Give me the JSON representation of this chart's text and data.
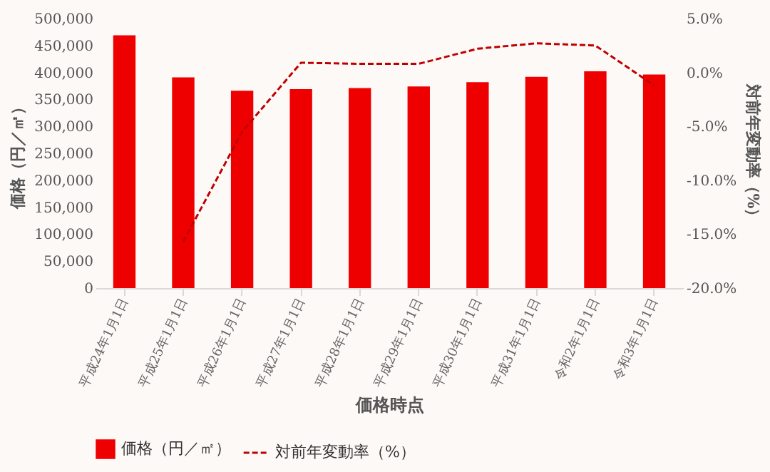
{
  "chart_data": {
    "type": "bar",
    "xlabel": "価格時点",
    "ylabel": "価格（円／㎡）",
    "y2label": "対前年変動率（%）",
    "categories": [
      "平成24年1月1日",
      "平成25年1月1日",
      "平成26年1月1日",
      "平成27年1月1日",
      "平成28年1月1日",
      "平成29年1月1日",
      "平成30年1月1日",
      "平成31年1月1日",
      "令和2年1月1日",
      "令和3年1月1日"
    ],
    "series": [
      {
        "name": "価格（円／㎡）",
        "color": "#ee0000",
        "values": [
          469000,
          391000,
          366000,
          369000,
          371000,
          374000,
          382000,
          392000,
          402000,
          396000
        ]
      },
      {
        "name": "対前年変動率（%）",
        "type": "line",
        "axis": "y2",
        "color": "#c00000",
        "line_style": "dashed",
        "marker": "none",
        "values": [
          null,
          -15.7,
          -5.5,
          0.9,
          0.8,
          0.8,
          2.2,
          2.7,
          2.5,
          -1.2
        ]
      }
    ],
    "ylim": [
      0,
      500000
    ],
    "yticks": [
      {
        "value": 0,
        "label": "0"
      },
      {
        "value": 50000,
        "label": "50,000"
      },
      {
        "value": 100000,
        "label": "100,000"
      },
      {
        "value": 150000,
        "label": "150,000"
      },
      {
        "value": 200000,
        "label": "200,000"
      },
      {
        "value": 250000,
        "label": "250,000"
      },
      {
        "value": 300000,
        "label": "300,000"
      },
      {
        "value": 350000,
        "label": "350,000"
      },
      {
        "value": 400000,
        "label": "400,000"
      },
      {
        "value": 450000,
        "label": "450,000"
      },
      {
        "value": 500000,
        "label": "500,000"
      }
    ],
    "y2lim": [
      -20,
      5
    ],
    "y2ticks": [
      {
        "value": -20,
        "label": "-20.0%"
      },
      {
        "value": -15,
        "label": "-15.0%"
      },
      {
        "value": -10,
        "label": "-10.0%"
      },
      {
        "value": -5,
        "label": "-5.0%"
      },
      {
        "value": 0,
        "label": "0.0%"
      },
      {
        "value": 5,
        "label": "5.0%"
      }
    ],
    "grid": false,
    "legend": "bottom"
  }
}
